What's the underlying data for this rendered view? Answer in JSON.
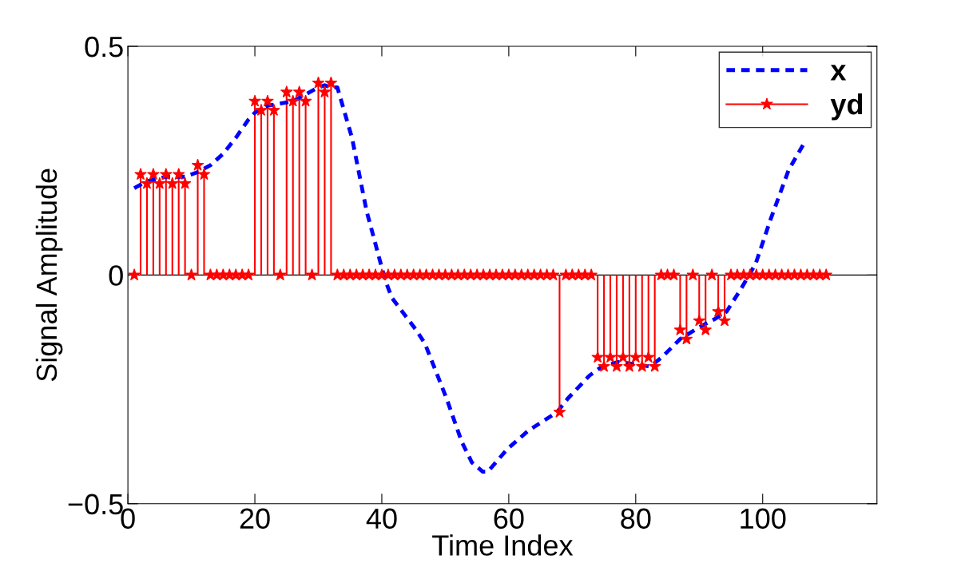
{
  "chart_data": {
    "type": "line",
    "xlabel": "Time Index",
    "ylabel": "Signal Amplitude",
    "xlim": [
      0,
      118
    ],
    "ylim": [
      -0.5,
      0.5
    ],
    "xticks": [
      0,
      20,
      40,
      60,
      80,
      100
    ],
    "yticks": [
      {
        "value": -0.5,
        "label": "−0.5"
      },
      0,
      0.5
    ],
    "legend": "top right",
    "grid": false,
    "ref_lines": [
      {
        "axis": "y",
        "value": 0,
        "color": "#000000"
      }
    ],
    "series": [
      {
        "name": "x",
        "type": "line",
        "color": "#0000ff",
        "line_style": "dashed",
        "marker": "none",
        "x": [
          1,
          3,
          6,
          9,
          11,
          13,
          15,
          17,
          19,
          20,
          22,
          24,
          26,
          28,
          30,
          31,
          32,
          33,
          35.3,
          37.6,
          40.5,
          41.6,
          45.4,
          46.8,
          50.2,
          52.6,
          54.2,
          55.9,
          56.7,
          59.8,
          63.1,
          67.6,
          69.3,
          72.7,
          74.7,
          77.3,
          82.3,
          84.1,
          87,
          89.9,
          92.6,
          94.3,
          96.6,
          98.9,
          101.2,
          104.1,
          106.6
        ],
        "values": [
          0.19,
          0.205,
          0.215,
          0.215,
          0.225,
          0.24,
          0.265,
          0.3,
          0.34,
          0.355,
          0.37,
          0.375,
          0.38,
          0.395,
          0.41,
          0.415,
          0.41,
          0.41,
          0.3,
          0.14,
          -0.01,
          -0.05,
          -0.12,
          -0.15,
          -0.27,
          -0.365,
          -0.41,
          -0.43,
          -0.43,
          -0.38,
          -0.34,
          -0.3,
          -0.27,
          -0.22,
          -0.2,
          -0.19,
          -0.2,
          -0.18,
          -0.14,
          -0.115,
          -0.095,
          -0.08,
          -0.03,
          0.025,
          0.12,
          0.23,
          0.29
        ]
      },
      {
        "name": "yd",
        "type": "lollipop",
        "color": "#ff0000",
        "line_style": "solid",
        "marker": "star",
        "x": [
          1,
          2,
          3,
          4,
          5,
          6,
          7,
          8,
          9,
          10,
          11,
          12,
          13,
          14,
          15,
          16,
          17,
          18,
          19,
          20,
          21,
          22,
          23,
          24,
          25,
          26,
          27,
          28,
          29,
          30,
          31,
          32,
          33,
          34,
          35,
          36,
          37,
          38,
          39,
          40,
          41,
          42,
          43,
          44,
          45,
          46,
          47,
          48,
          49,
          50,
          51,
          52,
          53,
          54,
          55,
          56,
          57,
          58,
          59,
          60,
          61,
          62,
          63,
          64,
          65,
          66,
          67,
          68,
          69,
          70,
          71,
          72,
          73,
          74,
          75,
          76,
          77,
          78,
          79,
          80,
          81,
          82,
          83,
          84,
          85,
          86,
          87,
          88,
          89,
          90,
          91,
          92,
          93,
          94,
          95,
          96,
          97,
          98,
          99,
          100,
          101,
          102,
          103,
          104,
          105,
          106,
          107,
          108,
          109,
          110
        ],
        "values": [
          0,
          0.22,
          0.2,
          0.22,
          0.2,
          0.22,
          0.2,
          0.22,
          0.2,
          0,
          0.24,
          0.22,
          0,
          0,
          0,
          0,
          0,
          0,
          0,
          0.38,
          0.36,
          0.38,
          0.36,
          0,
          0.4,
          0.38,
          0.4,
          0.38,
          0,
          0.42,
          0.4,
          0.42,
          0,
          0,
          0,
          0,
          0,
          0,
          0,
          0,
          0,
          0,
          0,
          0,
          0,
          0,
          0,
          0,
          0,
          0,
          0,
          0,
          0,
          0,
          0,
          0,
          0,
          0,
          0,
          0,
          0,
          0,
          0,
          0,
          0,
          0,
          0,
          -0.3,
          0,
          0,
          0,
          0,
          0,
          -0.18,
          -0.2,
          -0.18,
          -0.2,
          -0.18,
          -0.2,
          -0.18,
          -0.2,
          -0.18,
          -0.2,
          0,
          0,
          0,
          -0.12,
          -0.14,
          0,
          -0.1,
          -0.12,
          0,
          -0.08,
          -0.1,
          0,
          0,
          0,
          0,
          0,
          0,
          0,
          0,
          0,
          0,
          0,
          0,
          0,
          0,
          0,
          0
        ]
      }
    ]
  }
}
